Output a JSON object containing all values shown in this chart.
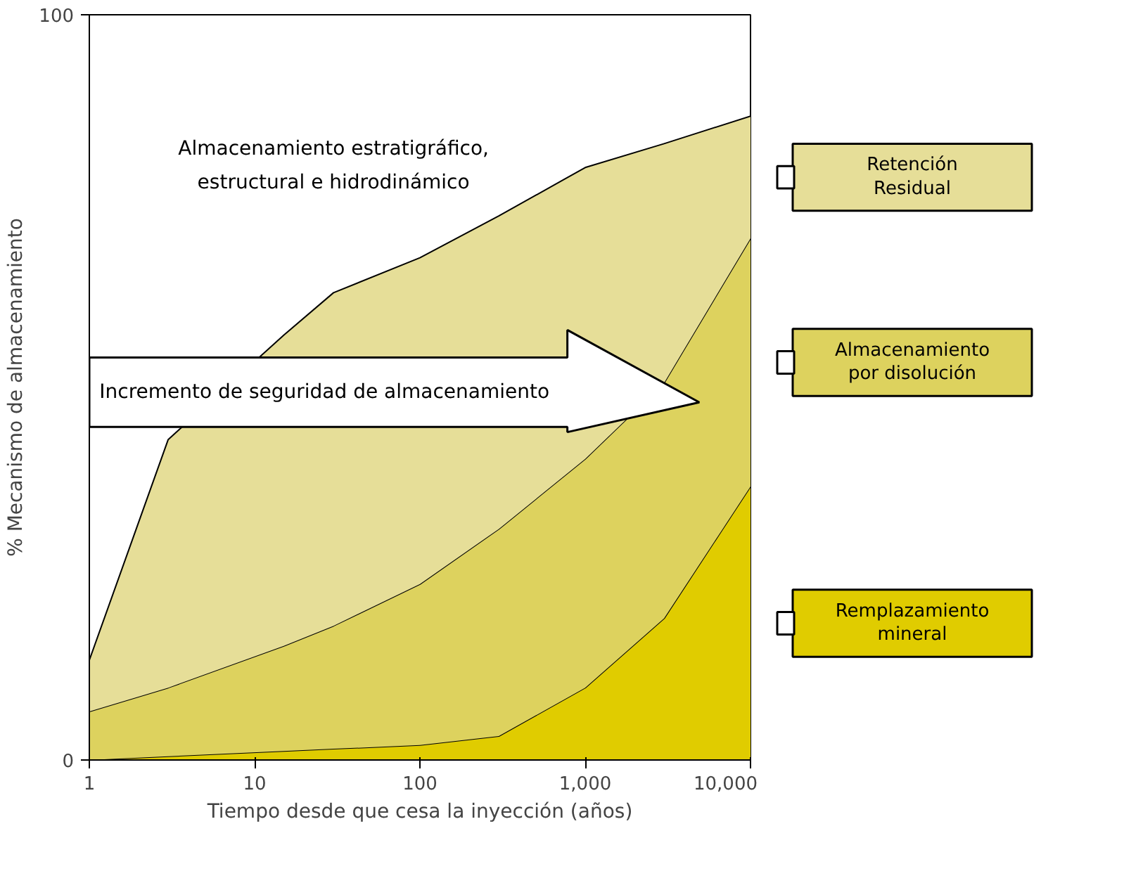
{
  "chart_data": {
    "type": "area",
    "stacked": true,
    "log": "x",
    "xlabel": "Tiempo desde que cesa la inyección (años)",
    "ylabel": "% Mecanismo de almacenamiento",
    "x": [
      1,
      3,
      15,
      30,
      100,
      300,
      1000,
      3000,
      10000
    ],
    "series": [
      {
        "name": "Remplazamiento mineral",
        "color": "#e0cc00",
        "values": [
          0,
          0.5,
          1.2,
          1.5,
          2,
          3.2,
          9.7,
          19,
          36.7
        ]
      },
      {
        "name": "Almacenamiento por disolución",
        "color": "#ddd25e",
        "values": [
          6.5,
          9.2,
          14.1,
          16.5,
          21.6,
          27.8,
          30.7,
          31.6,
          33.3
        ]
      },
      {
        "name": "Retención Residual",
        "color": "#e6de98",
        "values": [
          6.9,
          33.3,
          41.7,
          44.7,
          43.8,
          42,
          39.1,
          32.1,
          16.4
        ]
      }
    ],
    "xlim": [
      1,
      10000
    ],
    "ylim": [
      0,
      100
    ],
    "xticks": [
      1,
      10,
      100,
      {
        "value": 1000,
        "label": "1,000"
      },
      {
        "value": 10000,
        "label": "10,000"
      }
    ],
    "yticks": [
      0,
      100
    ],
    "annotations": [
      "Almacenamiento estratigráfico, estructural e hidrodinámico",
      "Incremento de seguridad de almacenamiento"
    ],
    "legend": "right",
    "grid": false
  }
}
